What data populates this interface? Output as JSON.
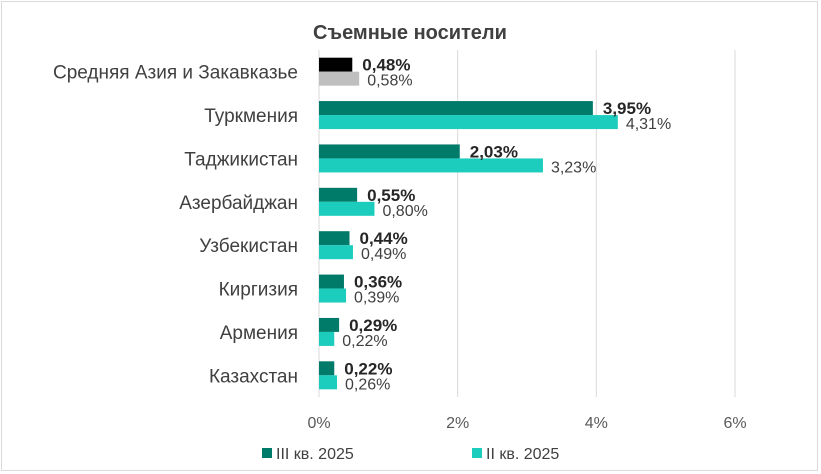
{
  "chart_data": {
    "type": "bar",
    "orientation": "horizontal",
    "title": "Съемные носители",
    "categories": [
      "Средняя Азия и Закавказье",
      "Туркмения",
      "Таджикистан",
      "Азербайджан",
      "Узбекистан",
      "Киргизия",
      "Армения",
      "Казахстан"
    ],
    "series": [
      {
        "name": "III кв. 2025",
        "color": "#007B6A",
        "values": [
          0.48,
          3.95,
          2.03,
          0.55,
          0.44,
          0.36,
          0.29,
          0.22
        ],
        "labels": [
          "0,48%",
          "3,95%",
          "2,03%",
          "0,55%",
          "0,44%",
          "0,36%",
          "0,29%",
          "0,22%"
        ]
      },
      {
        "name": "II кв. 2025",
        "color": "#1CCDBE",
        "values": [
          0.58,
          4.31,
          3.23,
          0.8,
          0.49,
          0.39,
          0.22,
          0.26
        ],
        "labels": [
          "0,58%",
          "4,31%",
          "3,23%",
          "0,80%",
          "0,49%",
          "0,39%",
          "0,22%",
          "0,26%"
        ]
      }
    ],
    "highlight": {
      "category_index": 0,
      "colors": [
        "#000000",
        "#BFBFBF"
      ]
    },
    "xlim": [
      0,
      6
    ],
    "xticks": [
      0,
      2,
      4,
      6
    ],
    "xtick_labels": [
      "0%",
      "2%",
      "4%",
      "6%"
    ],
    "grid": true,
    "legend_position": "bottom",
    "gridline_color": "#D9D9D9"
  }
}
